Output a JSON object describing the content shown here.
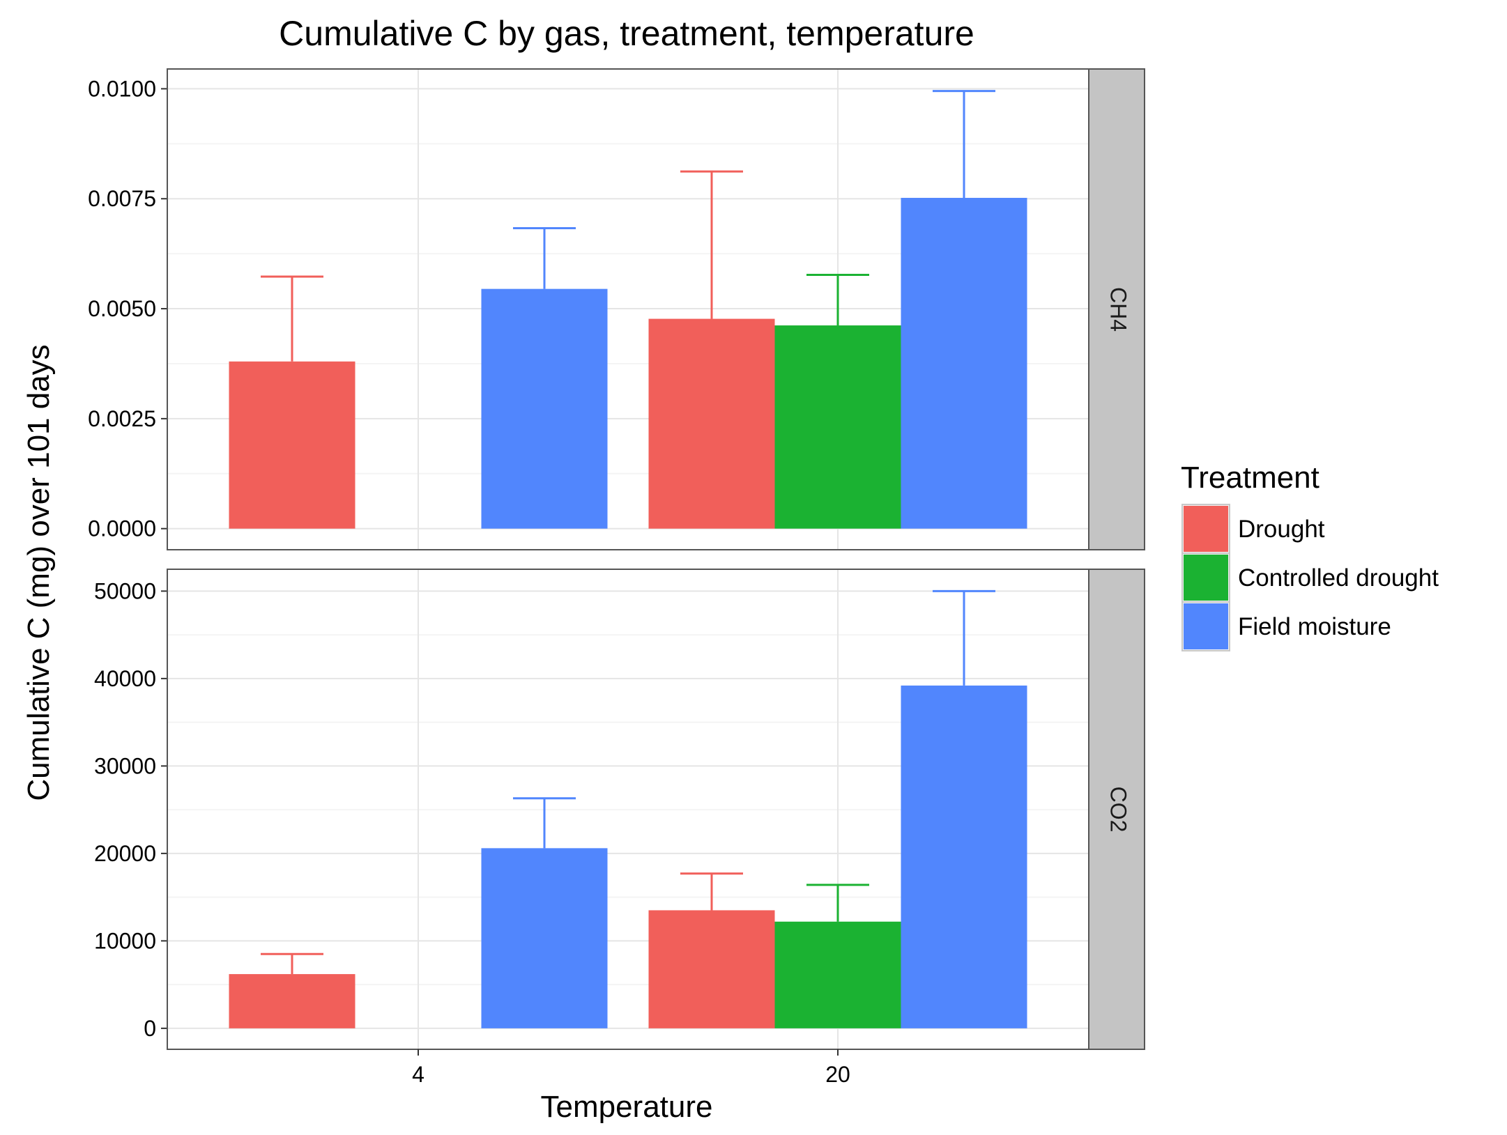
{
  "chart_data": {
    "type": "bar",
    "title": "Cumulative C by gas, treatment, temperature",
    "xlabel": "Temperature",
    "ylabel": "Cumulative C (mg) over 101 days",
    "categories": [
      "4",
      "20"
    ],
    "legend": {
      "title": "Treatment",
      "position": "right",
      "entries": [
        "Drought",
        "Controlled drought",
        "Field moisture"
      ]
    },
    "colors": {
      "Drought": "#F15F5A",
      "Controlled drought": "#1BB232",
      "Field moisture": "#5186FD"
    },
    "grid": true,
    "panels": [
      {
        "strip": "CH4",
        "ylim": [
          -0.00048,
          0.01045
        ],
        "yticks": [
          0,
          0.0025,
          0.005,
          0.0075,
          0.01
        ],
        "ytick_labels": [
          "0.0000",
          "0.0025",
          "0.0050",
          "0.0075",
          "0.0100"
        ],
        "bars": [
          {
            "temperature": "4",
            "treatment": "Drought",
            "value": 0.0038,
            "error_upper": 0.00573
          },
          {
            "temperature": "4",
            "treatment": "Field moisture",
            "value": 0.00545,
            "error_upper": 0.00683
          },
          {
            "temperature": "20",
            "treatment": "Drought",
            "value": 0.00477,
            "error_upper": 0.00812
          },
          {
            "temperature": "20",
            "treatment": "Controlled drought",
            "value": 0.00462,
            "error_upper": 0.00577
          },
          {
            "temperature": "20",
            "treatment": "Field moisture",
            "value": 0.00752,
            "error_upper": 0.00995
          }
        ]
      },
      {
        "strip": "CO2",
        "ylim": [
          -2400,
          52500
        ],
        "yticks": [
          0,
          10000,
          20000,
          30000,
          40000,
          50000
        ],
        "ytick_labels": [
          "0",
          "10000",
          "20000",
          "30000",
          "40000",
          "50000"
        ],
        "bars": [
          {
            "temperature": "4",
            "treatment": "Drought",
            "value": 6200,
            "error_upper": 8500
          },
          {
            "temperature": "4",
            "treatment": "Field moisture",
            "value": 20600,
            "error_upper": 26300
          },
          {
            "temperature": "20",
            "treatment": "Drought",
            "value": 13500,
            "error_upper": 17700
          },
          {
            "temperature": "20",
            "treatment": "Controlled drought",
            "value": 12200,
            "error_upper": 16400
          },
          {
            "temperature": "20",
            "treatment": "Field moisture",
            "value": 39200,
            "error_upper": 50000
          }
        ]
      }
    ]
  }
}
